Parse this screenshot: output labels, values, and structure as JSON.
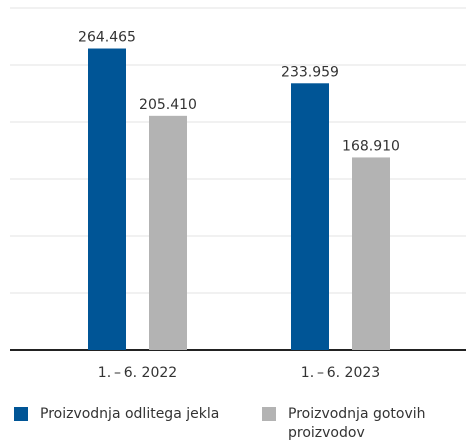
{
  "chart_data": {
    "type": "bar",
    "categories": [
      "1. – 6. 2022",
      "1. – 6. 2023"
    ],
    "series": [
      {
        "name": "Proizvodnja odlitega jekla",
        "color": "#005596",
        "values": [
          264465,
          233959
        ],
        "value_labels": [
          "264.465",
          "233.959"
        ]
      },
      {
        "name": "Proizvodnja gotovih proizvodov",
        "color": "#b3b3b3",
        "values": [
          205410,
          168910
        ],
        "value_labels": [
          "205.410",
          "168.910"
        ]
      }
    ],
    "ylim": [
      0,
      300000
    ],
    "yticks": [
      0,
      50000,
      100000,
      150000,
      200000,
      250000,
      300000
    ],
    "grid": true
  }
}
